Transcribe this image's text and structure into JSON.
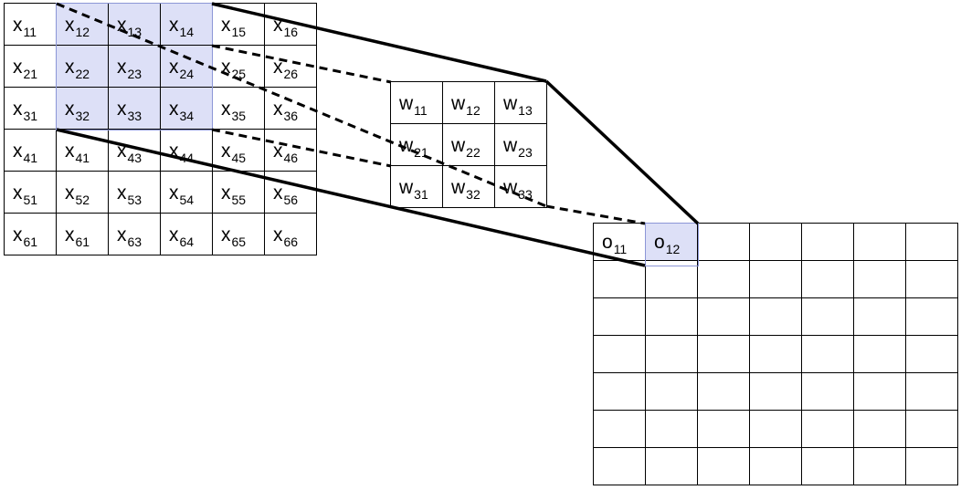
{
  "input": {
    "cells": [
      [
        {
          "b": "x",
          "s": "11"
        },
        {
          "b": "x",
          "s": "12"
        },
        {
          "b": "x",
          "s": "13"
        },
        {
          "b": "x",
          "s": "14"
        },
        {
          "b": "x",
          "s": "15"
        },
        {
          "b": "x",
          "s": "16"
        }
      ],
      [
        {
          "b": "x",
          "s": "21"
        },
        {
          "b": "x",
          "s": "22"
        },
        {
          "b": "x",
          "s": "23"
        },
        {
          "b": "x",
          "s": "24"
        },
        {
          "b": "x",
          "s": "25"
        },
        {
          "b": "x",
          "s": "26"
        }
      ],
      [
        {
          "b": "x",
          "s": "31"
        },
        {
          "b": "x",
          "s": "32"
        },
        {
          "b": "x",
          "s": "33"
        },
        {
          "b": "x",
          "s": "34"
        },
        {
          "b": "x",
          "s": "35"
        },
        {
          "b": "x",
          "s": "36"
        }
      ],
      [
        {
          "b": "x",
          "s": "41"
        },
        {
          "b": "x",
          "s": "41"
        },
        {
          "b": "x",
          "s": "43"
        },
        {
          "b": "x",
          "s": "44"
        },
        {
          "b": "x",
          "s": "45"
        },
        {
          "b": "x",
          "s": "46"
        }
      ],
      [
        {
          "b": "x",
          "s": "51"
        },
        {
          "b": "x",
          "s": "52"
        },
        {
          "b": "x",
          "s": "53"
        },
        {
          "b": "x",
          "s": "54"
        },
        {
          "b": "x",
          "s": "55"
        },
        {
          "b": "x",
          "s": "56"
        }
      ],
      [
        {
          "b": "x",
          "s": "61"
        },
        {
          "b": "x",
          "s": "61"
        },
        {
          "b": "x",
          "s": "63"
        },
        {
          "b": "x",
          "s": "64"
        },
        {
          "b": "x",
          "s": "65"
        },
        {
          "b": "x",
          "s": "66"
        }
      ]
    ],
    "highlight_rows": [
      0,
      1,
      2
    ],
    "highlight_cols": [
      1,
      2,
      3
    ]
  },
  "kernel": {
    "cells": [
      [
        {
          "b": "w",
          "s": "11"
        },
        {
          "b": "w",
          "s": "12"
        },
        {
          "b": "w",
          "s": "13"
        }
      ],
      [
        {
          "b": "w",
          "s": "21"
        },
        {
          "b": "w",
          "s": "22"
        },
        {
          "b": "w",
          "s": "23"
        }
      ],
      [
        {
          "b": "w",
          "s": "31"
        },
        {
          "b": "w",
          "s": "32"
        },
        {
          "b": "w",
          "s": "33"
        }
      ]
    ]
  },
  "output": {
    "rows": 7,
    "cols": 7,
    "labels": [
      {
        "row": 0,
        "col": 0,
        "b": "o",
        "s": "11"
      },
      {
        "row": 0,
        "col": 1,
        "b": "o",
        "s": "12"
      }
    ],
    "highlight": {
      "row": 0,
      "col": 1
    }
  },
  "colors": {
    "highlight_fill": "#dde0f7",
    "highlight_border": "#8c96d6",
    "line": "#000000"
  }
}
